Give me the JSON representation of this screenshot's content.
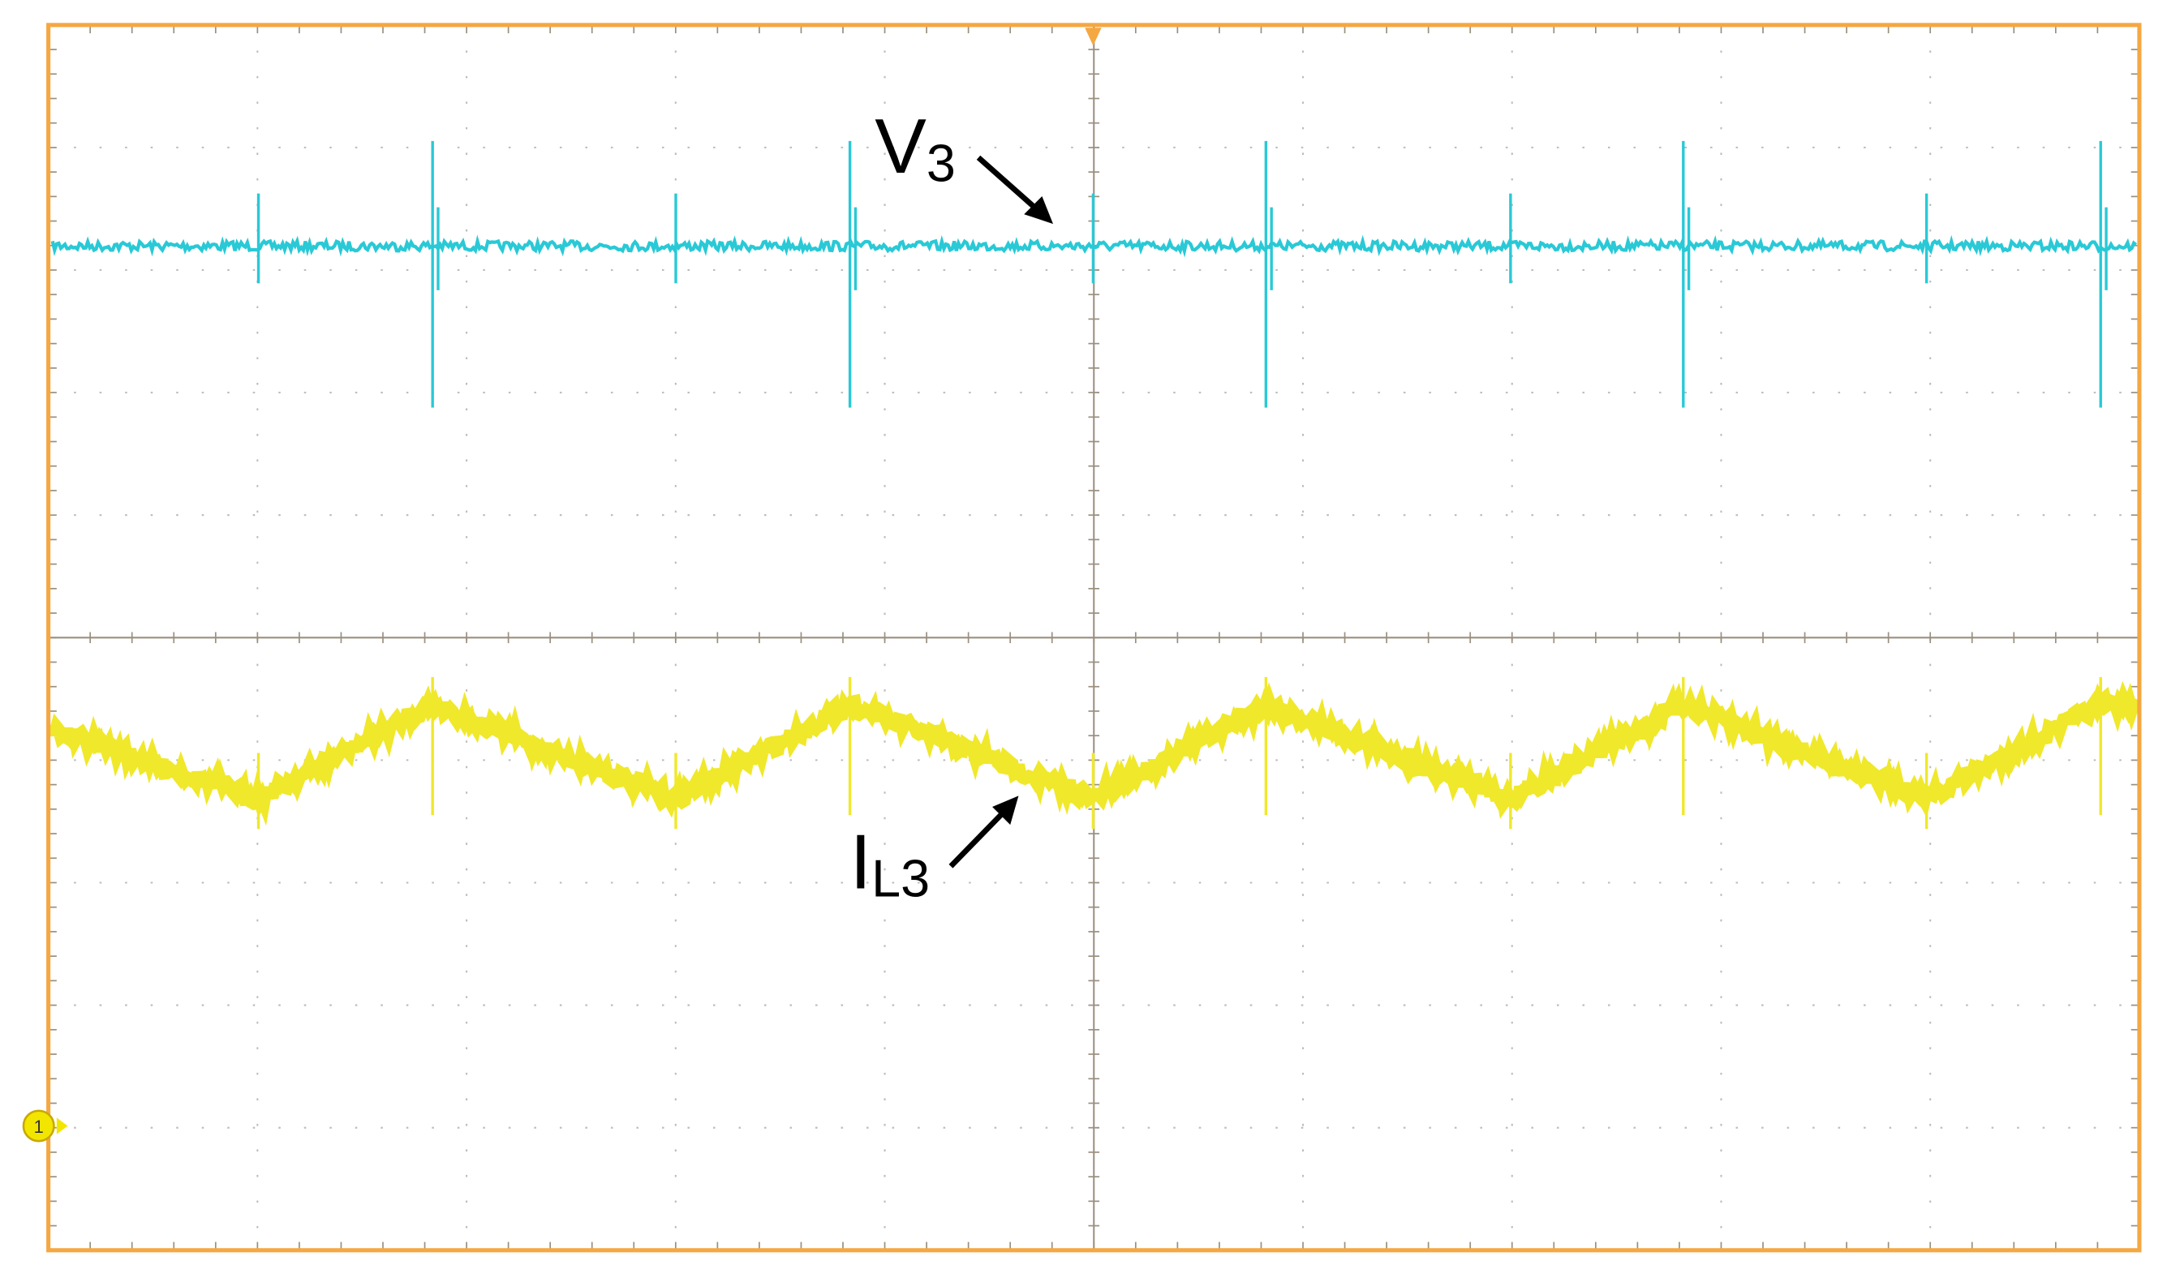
{
  "labels": {
    "v3": {
      "main": "V",
      "sub": "3"
    },
    "il3": {
      "main": "I",
      "sub": "L3"
    }
  },
  "channel_marker": "1"
}
